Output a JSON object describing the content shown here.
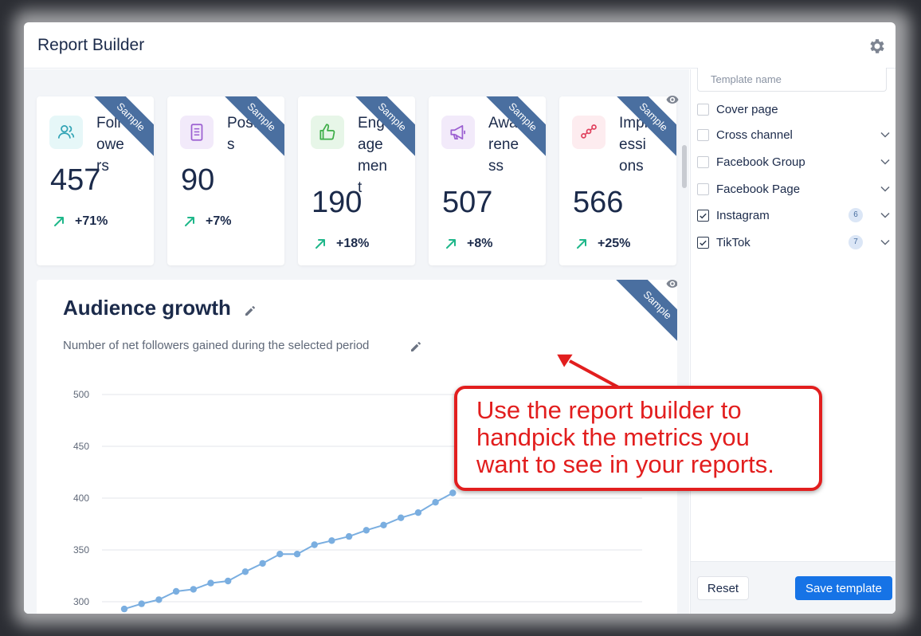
{
  "modal": {
    "title": "Report Builder"
  },
  "icons": {
    "settings": "gear-icon",
    "visibility": "eye-icon",
    "edit": "pencil-icon",
    "trend": "arrow-up-right-icon",
    "expand": "chevron-down-icon",
    "checked": "check-icon"
  },
  "cards": [
    {
      "label": "Followers",
      "value": "457",
      "change": "+71%",
      "ribbon": "Sample",
      "icon": "users-icon",
      "icon_bg": "#e6f7f8",
      "icon_color": "#32a4b5"
    },
    {
      "label": "Posts",
      "value": "90",
      "change": "+7%",
      "ribbon": "Sample",
      "icon": "document-icon",
      "icon_bg": "#f2eafa",
      "icon_color": "#9b5fd1"
    },
    {
      "label": "Engagement",
      "value": "190",
      "change": "+18%",
      "ribbon": "Sample",
      "icon": "thumbs-up-icon",
      "icon_bg": "#e7f6e8",
      "icon_color": "#3eae48"
    },
    {
      "label": "Awareness",
      "value": "507",
      "change": "+8%",
      "ribbon": "Sample",
      "icon": "megaphone-icon",
      "icon_bg": "#f2eafa",
      "icon_color": "#9b5fd1"
    },
    {
      "label": "Impressions",
      "value": "566",
      "change": "+25%",
      "ribbon": "Sample",
      "icon": "share-nodes-icon",
      "icon_bg": "#fdecef",
      "icon_color": "#e0425e"
    }
  ],
  "chart_section": {
    "title": "Audience growth",
    "subtitle": "Number of net followers gained during the selected period",
    "ribbon": "Sample"
  },
  "chart_data": {
    "type": "line",
    "title": "Audience growth",
    "xlabel": "",
    "ylabel": "",
    "y_ticks": [
      "500",
      "450",
      "400",
      "350",
      "300"
    ],
    "ylim": [
      300,
      500
    ],
    "grid": true,
    "line_color": "#7aaee0",
    "values": [
      293,
      298,
      302,
      310,
      312,
      318,
      320,
      329,
      337,
      346,
      346,
      355,
      359,
      363,
      369,
      374,
      381,
      386,
      396,
      405
    ]
  },
  "sidebar": {
    "template_placeholder": "Template name",
    "options": [
      {
        "label": "Cover page",
        "checked": false,
        "expandable": false,
        "badge": ""
      },
      {
        "label": "Cross channel",
        "checked": false,
        "expandable": true,
        "badge": ""
      },
      {
        "label": "Facebook Group",
        "checked": false,
        "expandable": true,
        "badge": ""
      },
      {
        "label": "Facebook Page",
        "checked": false,
        "expandable": true,
        "badge": ""
      },
      {
        "label": "Instagram",
        "checked": true,
        "expandable": true,
        "badge": "6"
      },
      {
        "label": "TikTok",
        "checked": true,
        "expandable": true,
        "badge": "7"
      }
    ],
    "reset_label": "Reset",
    "save_label": "Save template"
  },
  "callout": {
    "text": "Use the report builder to handpick the metrics you want to see in your reports."
  },
  "colors": {
    "accent": "#1673e6",
    "ribbon": "#4a6fa0",
    "trend_up": "#1fb78a",
    "callout": "#e21e1e",
    "heading": "#1b2a4a"
  }
}
